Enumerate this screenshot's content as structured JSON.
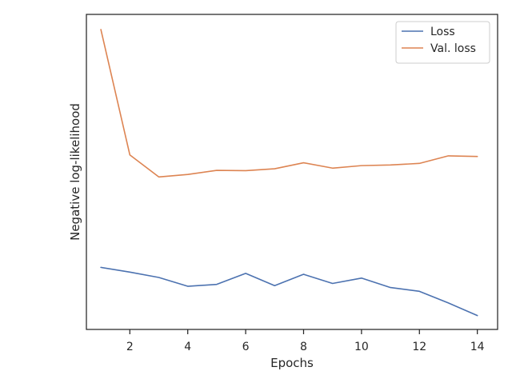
{
  "chart_data": {
    "type": "line",
    "title": "",
    "xlabel": "Epochs",
    "ylabel": "Negative log-likelihood",
    "x": [
      1,
      2,
      3,
      4,
      5,
      6,
      7,
      8,
      9,
      10,
      11,
      12,
      13,
      14
    ],
    "xlim": [
      0.5,
      14.7
    ],
    "ylim": [
      0,
      100
    ],
    "xticks": [
      2,
      4,
      6,
      8,
      10,
      12,
      14
    ],
    "yticks": [],
    "grid": false,
    "legend": {
      "position": "top-right"
    },
    "series": [
      {
        "name": "Loss",
        "color": "#4c72b0",
        "values": [
          19.7,
          18.2,
          16.5,
          13.7,
          14.3,
          17.8,
          13.9,
          17.5,
          14.6,
          16.3,
          13.3,
          12.1,
          8.4,
          4.4
        ]
      },
      {
        "name": "Val. loss",
        "color": "#dd8452",
        "values": [
          95.2,
          55.4,
          48.4,
          49.2,
          50.5,
          50.4,
          51.0,
          52.9,
          51.2,
          52.0,
          52.2,
          52.7,
          55.1,
          54.9
        ]
      }
    ]
  }
}
